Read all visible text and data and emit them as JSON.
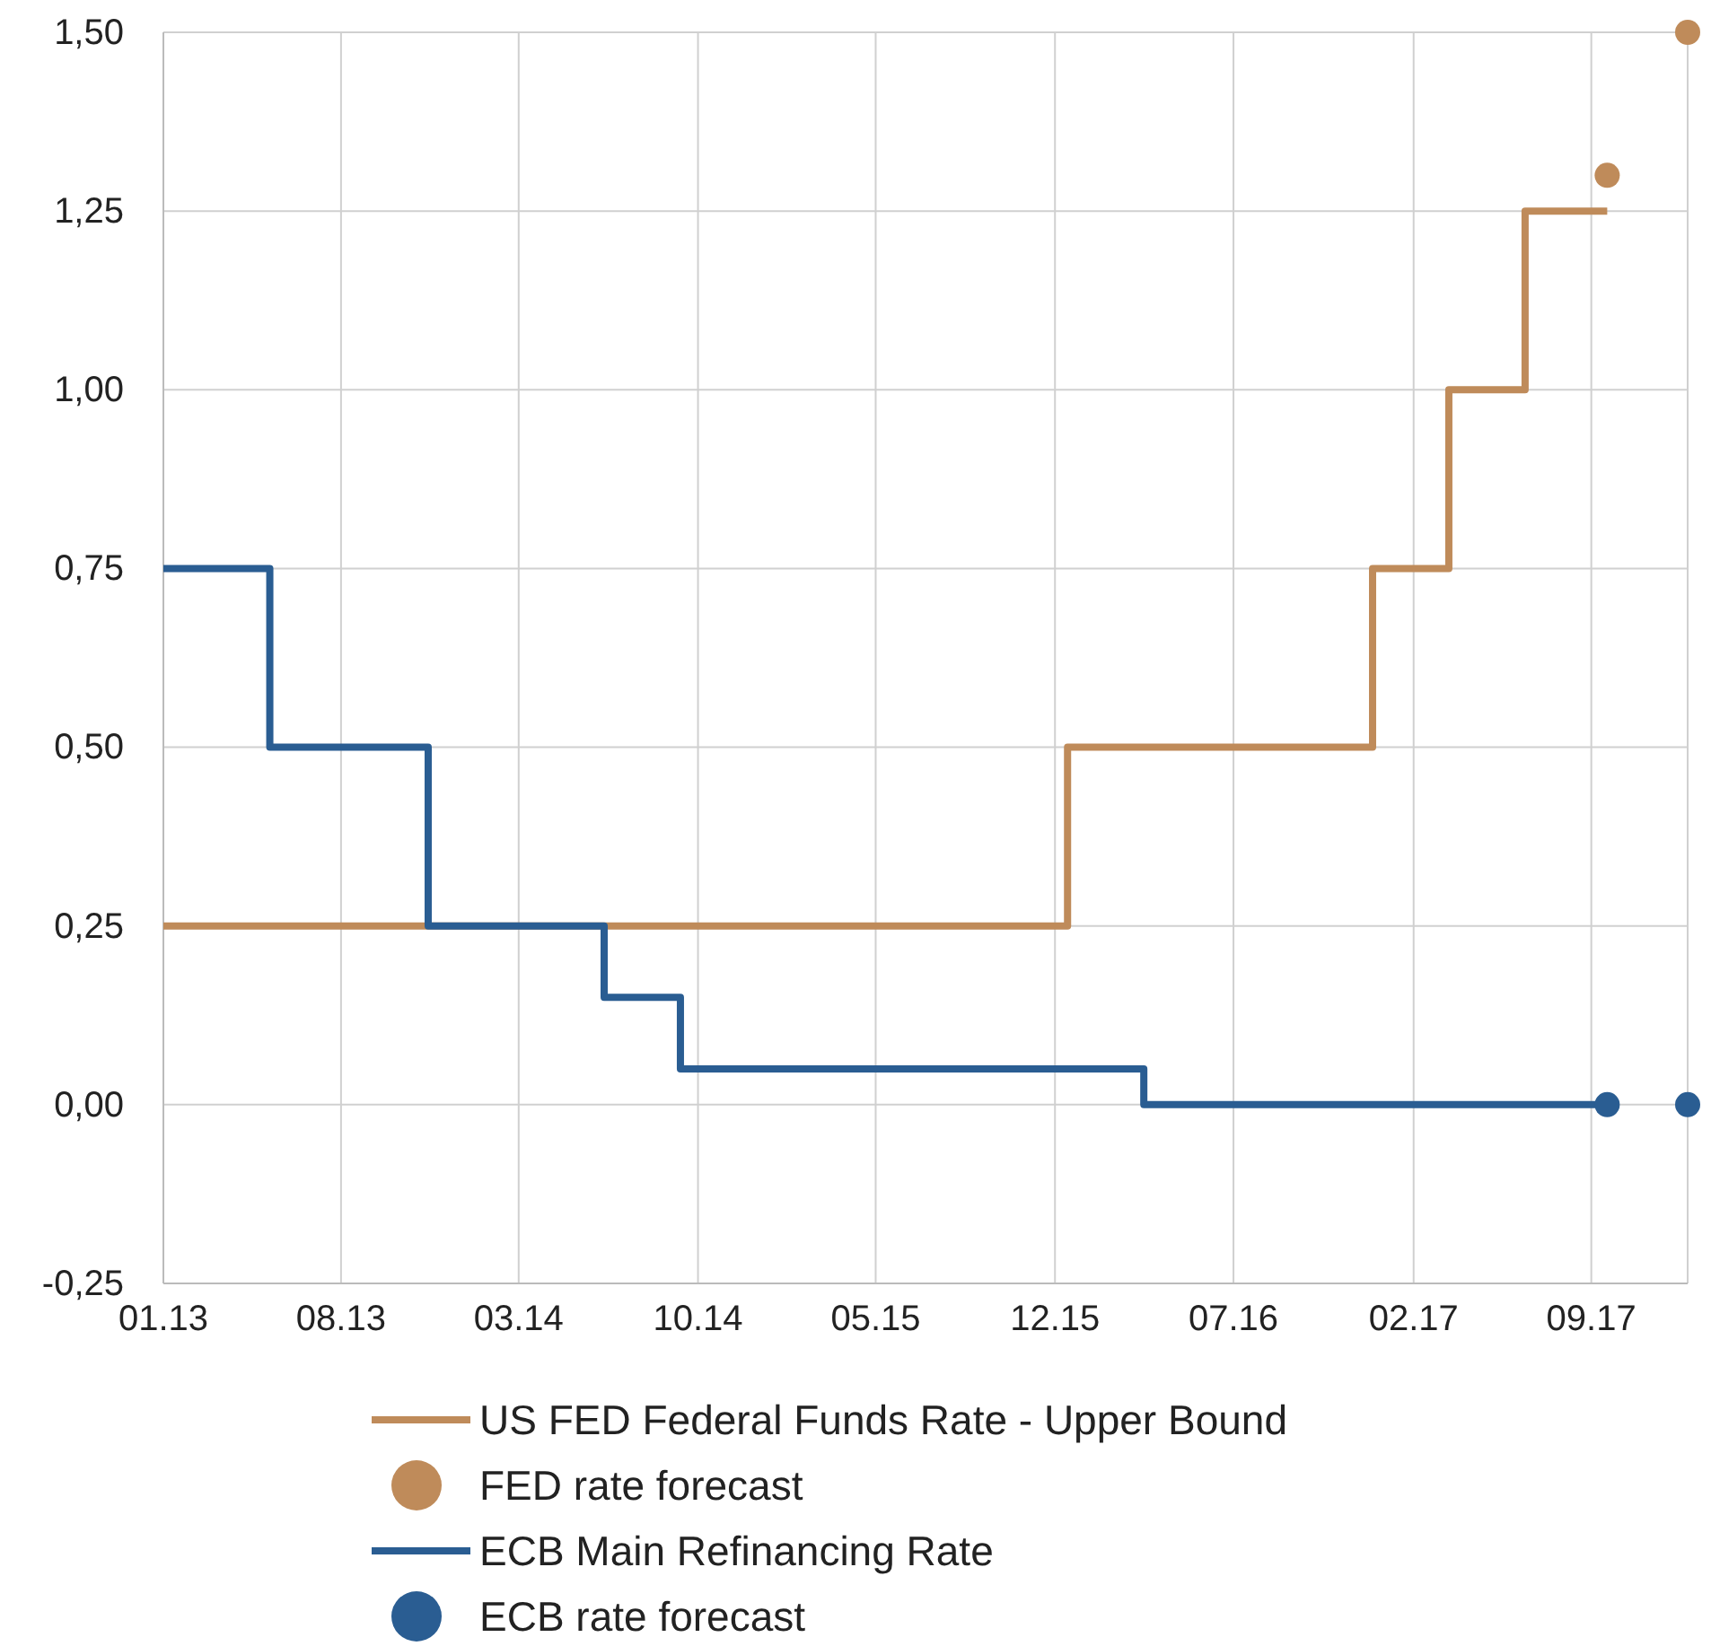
{
  "chart_data": {
    "type": "step",
    "xlim": [
      "2013-01-01",
      "2017-12-25"
    ],
    "ylim": [
      -0.25,
      1.5
    ],
    "xticks": [
      {
        "value": "2013-01-01",
        "label": "01.13"
      },
      {
        "value": "2013-08-01",
        "label": "08.13"
      },
      {
        "value": "2014-03-01",
        "label": "03.14"
      },
      {
        "value": "2014-10-01",
        "label": "10.14"
      },
      {
        "value": "2015-05-01",
        "label": "05.15"
      },
      {
        "value": "2015-12-01",
        "label": "12.15"
      },
      {
        "value": "2016-07-01",
        "label": "07.16"
      },
      {
        "value": "2017-02-01",
        "label": "02.17"
      },
      {
        "value": "2017-09-01",
        "label": "09.17"
      }
    ],
    "yticks": [
      {
        "value": -0.25,
        "label": "-0,25"
      },
      {
        "value": 0,
        "label": "0,00"
      },
      {
        "value": 0.25,
        "label": "0,25"
      },
      {
        "value": 0.5,
        "label": "0,50"
      },
      {
        "value": 0.75,
        "label": "0,75"
      },
      {
        "value": 1,
        "label": "1,00"
      },
      {
        "value": 1.25,
        "label": "1,25"
      },
      {
        "value": 1.5,
        "label": "1,50"
      }
    ],
    "grid": true,
    "legend": "bottom",
    "series": [
      {
        "name": "US FED Federal Funds Rate - Upper Bound",
        "type": "step",
        "color": "#bf8b5a",
        "x": [
          "2013-01-01",
          "2015-12-16",
          "2016-12-14",
          "2017-03-15",
          "2017-06-14",
          "2017-09-20"
        ],
        "values": [
          0.25,
          0.5,
          0.75,
          1,
          1.25,
          1.25
        ]
      },
      {
        "name": "FED rate forecast",
        "type": "scatter",
        "marker": "circle",
        "color": "#bf8b5a",
        "x": [
          "2017-09-20",
          "2017-12-25"
        ],
        "values": [
          1.3,
          1.5
        ]
      },
      {
        "name": "ECB Main Refinancing Rate",
        "type": "step",
        "color": "#2a5d92",
        "x": [
          "2013-01-01",
          "2013-05-08",
          "2013-11-13",
          "2014-06-11",
          "2014-09-10",
          "2016-03-16",
          "2017-09-20"
        ],
        "values": [
          0.75,
          0.5,
          0.25,
          0.15,
          0.05,
          0,
          0
        ]
      },
      {
        "name": "ECB rate forecast",
        "type": "scatter",
        "marker": "circle",
        "color": "#2a5d92",
        "x": [
          "2017-09-20",
          "2017-12-25"
        ],
        "values": [
          0,
          0
        ]
      }
    ]
  }
}
